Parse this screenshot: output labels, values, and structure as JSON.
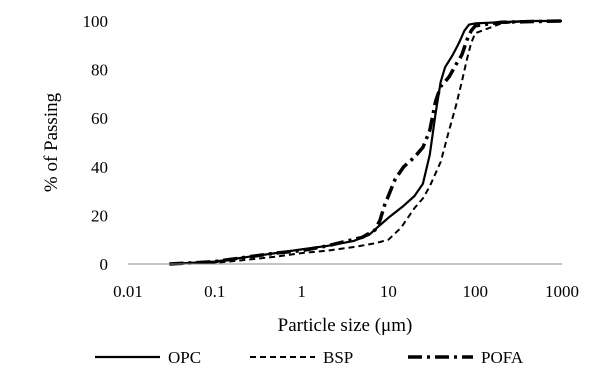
{
  "chart_data": {
    "type": "line",
    "title": "",
    "xlabel": "Particle size (μm)",
    "ylabel": "% of Passing",
    "x_scale": "log",
    "xlim": [
      0.01,
      1000
    ],
    "ylim": [
      0,
      100
    ],
    "x_ticks": [
      "0.01",
      "0.1",
      "1",
      "10",
      "100",
      "1000"
    ],
    "y_ticks": [
      "0",
      "20",
      "40",
      "60",
      "80",
      "100"
    ],
    "grid": false,
    "legend_position": "bottom",
    "series": [
      {
        "name": "OPC",
        "line_style": "solid",
        "color": "#000000",
        "points": [
          [
            0.03,
            0
          ],
          [
            0.1,
            1
          ],
          [
            0.2,
            2.5
          ],
          [
            0.5,
            4.5
          ],
          [
            1,
            6
          ],
          [
            2,
            7.5
          ],
          [
            4,
            9.5
          ],
          [
            6,
            12
          ],
          [
            8,
            16
          ],
          [
            10,
            19
          ],
          [
            15,
            24
          ],
          [
            20,
            28
          ],
          [
            25,
            33
          ],
          [
            30,
            45
          ],
          [
            35,
            62
          ],
          [
            40,
            75
          ],
          [
            45,
            81
          ],
          [
            55,
            86
          ],
          [
            65,
            91
          ],
          [
            75,
            96
          ],
          [
            85,
            98.5
          ],
          [
            100,
            99
          ],
          [
            200,
            99.5
          ],
          [
            400,
            100
          ],
          [
            1000,
            100
          ]
        ]
      },
      {
        "name": "BSP",
        "line_style": "dashed",
        "color": "#000000",
        "points": [
          [
            0.03,
            0
          ],
          [
            0.1,
            0.5
          ],
          [
            0.2,
            1.5
          ],
          [
            0.5,
            3
          ],
          [
            1,
            4.5
          ],
          [
            2,
            5.5
          ],
          [
            4,
            7
          ],
          [
            7,
            8.5
          ],
          [
            10,
            10
          ],
          [
            14,
            15
          ],
          [
            20,
            23
          ],
          [
            25,
            27
          ],
          [
            30,
            32
          ],
          [
            40,
            42
          ],
          [
            50,
            55
          ],
          [
            60,
            65
          ],
          [
            70,
            75
          ],
          [
            80,
            84
          ],
          [
            90,
            91
          ],
          [
            100,
            95
          ],
          [
            200,
            99
          ],
          [
            400,
            100
          ],
          [
            1000,
            100
          ]
        ]
      },
      {
        "name": "POFA",
        "line_style": "dash-dot",
        "color": "#000000",
        "points": [
          [
            0.03,
            0
          ],
          [
            0.1,
            1
          ],
          [
            0.2,
            2.5
          ],
          [
            0.5,
            4.5
          ],
          [
            1,
            5.5
          ],
          [
            2,
            7.5
          ],
          [
            5,
            11
          ],
          [
            7,
            14
          ],
          [
            8,
            18
          ],
          [
            9,
            24
          ],
          [
            12,
            35
          ],
          [
            15,
            40
          ],
          [
            20,
            44
          ],
          [
            25,
            48
          ],
          [
            30,
            55
          ],
          [
            35,
            67
          ],
          [
            40,
            73
          ],
          [
            50,
            77
          ],
          [
            60,
            82
          ],
          [
            70,
            86
          ],
          [
            80,
            92
          ],
          [
            90,
            96
          ],
          [
            100,
            98
          ],
          [
            200,
            99.5
          ],
          [
            1000,
            100
          ]
        ]
      }
    ]
  }
}
